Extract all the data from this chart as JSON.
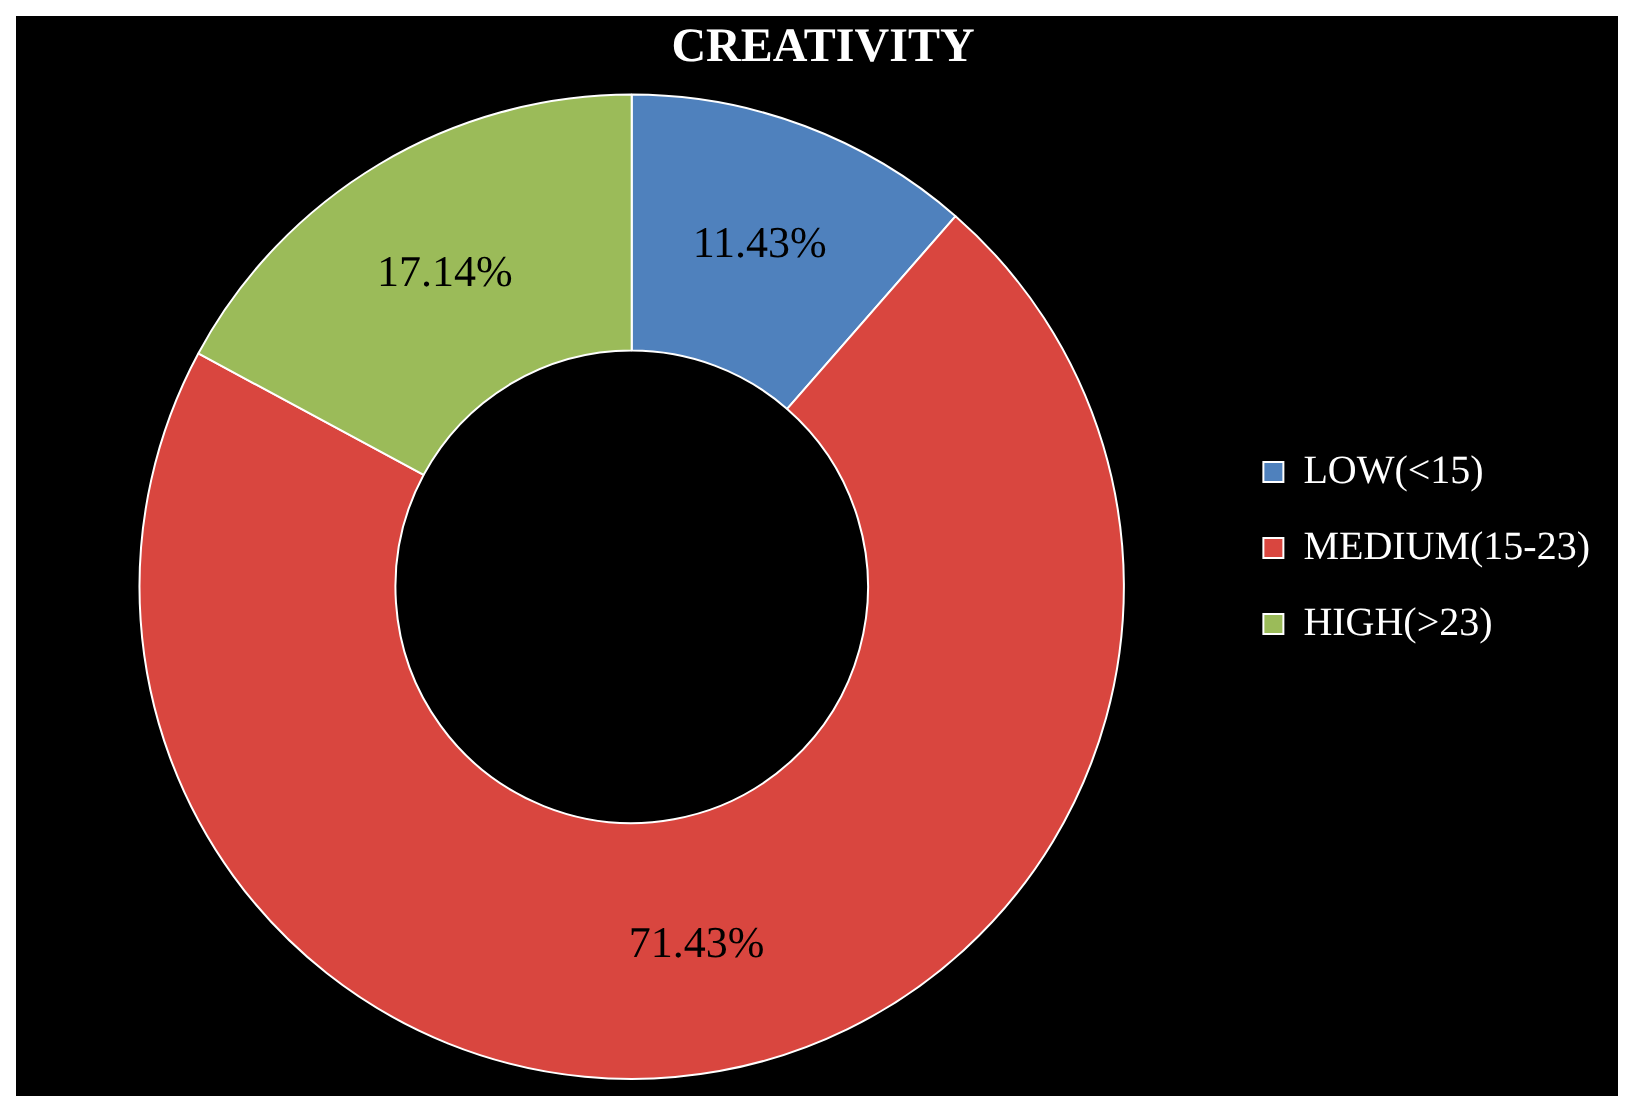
{
  "chart_data": {
    "type": "donut",
    "title": "CREATIVITY",
    "categories": [
      "LOW(<15)",
      "MEDIUM(15-23)",
      "HIGH(>23)"
    ],
    "values": [
      11.43,
      71.43,
      17.14
    ],
    "colors": [
      "#4f81bd",
      "#d9463f",
      "#9bbb59"
    ],
    "value_labels": [
      "11.43%",
      "71.43%",
      "17.14%"
    ],
    "legend": "right"
  }
}
